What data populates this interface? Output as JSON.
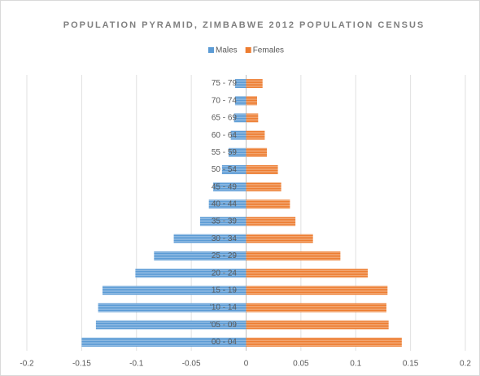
{
  "chart_data": {
    "type": "pyramid",
    "title": "POPULATION PYRAMID, ZIMBABWE 2012 POPULATION CENSUS",
    "categories": [
      "00 - 04",
      "'05 - 09",
      "'10 - 14",
      "15 - 19",
      "20 - 24",
      "25 - 29",
      "30 - 34",
      "35 - 39",
      "40 - 44",
      "45 - 49",
      "50 - 54",
      "55 - 59",
      "60 - 64",
      "65 - 69",
      "70 - 74",
      "75 - 79"
    ],
    "series": [
      {
        "name": "Males",
        "color": "#5b9bd5",
        "values": [
          -0.15,
          -0.137,
          -0.135,
          -0.131,
          -0.101,
          -0.084,
          -0.066,
          -0.042,
          -0.034,
          -0.03,
          -0.022,
          -0.016,
          -0.014,
          -0.011,
          -0.01,
          -0.01
        ]
      },
      {
        "name": "Females",
        "color": "#ed7d31",
        "values": [
          0.142,
          0.13,
          0.128,
          0.129,
          0.111,
          0.086,
          0.061,
          0.045,
          0.04,
          0.032,
          0.029,
          0.019,
          0.017,
          0.011,
          0.01,
          0.015
        ]
      }
    ],
    "xlim": [
      -0.2,
      0.2
    ],
    "xticks": [
      -0.2,
      -0.15,
      -0.1,
      -0.05,
      0,
      0.05,
      0.1,
      0.15,
      0.2
    ],
    "grid": true,
    "legend": "top"
  }
}
